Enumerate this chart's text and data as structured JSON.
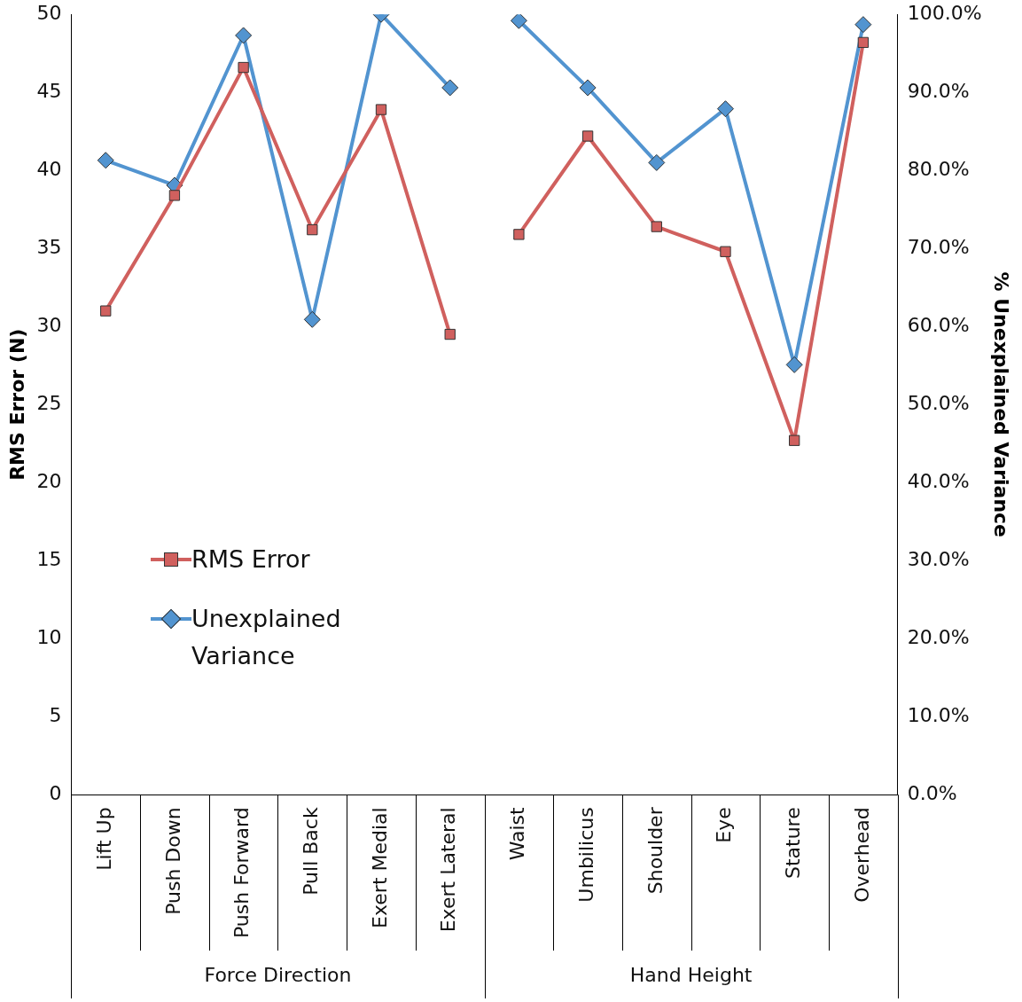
{
  "chart_data": {
    "type": "line",
    "ylabel": "RMS Error (N)",
    "y2label": "% Unexplained Variance",
    "categories": [
      "Lift Up",
      "Push Down",
      "Push Forward",
      "Pull Back",
      "Exert Medial",
      "Exert Lateral",
      "Waist",
      "Umbilicus",
      "Shoulder",
      "Eye",
      "Stature",
      "Overhead"
    ],
    "series": [
      {
        "name": "RMS Error",
        "color": "#d0605e",
        "marker": "square",
        "values": [
          31.0,
          38.4,
          46.6,
          36.2,
          43.9,
          29.5,
          null,
          null,
          null,
          null,
          null,
          null
        ]
      },
      {
        "color": "#d0605e",
        "marker": "square",
        "values": [
          null,
          null,
          null,
          null,
          null,
          null,
          35.9,
          42.2,
          36.4,
          34.8,
          22.7,
          48.2
        ]
      },
      {
        "name": "Unexplained Variance",
        "color": "#5294d0",
        "marker": "diamond",
        "axis": "y2",
        "values": [
          81.3,
          78.1,
          97.3,
          60.9,
          100.0,
          90.6,
          null,
          null,
          null,
          null,
          null,
          null
        ]
      },
      {
        "color": "#5294d0",
        "marker": "diamond",
        "axis": "y2",
        "values": [
          null,
          null,
          null,
          null,
          null,
          null,
          99.2,
          90.6,
          81.0,
          87.9,
          55.1,
          98.7
        ]
      }
    ],
    "ylim": [
      0,
      50
    ],
    "yticks": [
      0,
      5,
      10,
      15,
      20,
      25,
      30,
      35,
      40,
      45,
      50
    ],
    "y2lim": [
      0,
      100
    ],
    "y2ticks": [
      {
        "value": 0,
        "label": "0.0%"
      },
      {
        "value": 10,
        "label": "10.0%"
      },
      {
        "value": 20,
        "label": "20.0%"
      },
      {
        "value": 30,
        "label": "30.0%"
      },
      {
        "value": 40,
        "label": "40.0%"
      },
      {
        "value": 50,
        "label": "50.0%"
      },
      {
        "value": 60,
        "label": "60.0%"
      },
      {
        "value": 70,
        "label": "70.0%"
      },
      {
        "value": 80,
        "label": "80.0%"
      },
      {
        "value": 90,
        "label": "90.0%"
      },
      {
        "value": 100,
        "label": "100.0%"
      }
    ],
    "annotations": [
      "Force Direction",
      "Hand Height"
    ],
    "grid": false,
    "legend": "left"
  }
}
